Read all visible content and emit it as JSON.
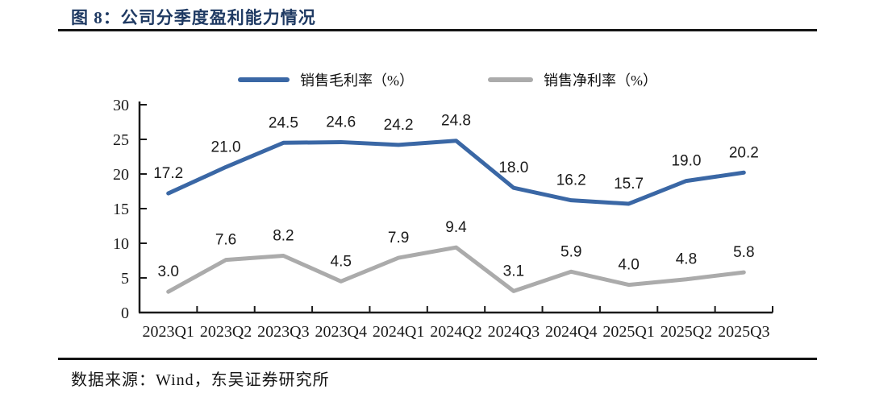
{
  "figure": {
    "title": "图 8：公司分季度盈利能力情况",
    "source": "数据来源：Wind，东吴证券研究所"
  },
  "colors": {
    "title_navy": "#1F3A63",
    "series_blue": "#3A67A5",
    "series_gray": "#ABABAB",
    "axis": "#1A1A1A",
    "label_text": "#1A1A1A",
    "rule": "#141414"
  },
  "chart_data": {
    "type": "line",
    "title": "公司分季度盈利能力情况",
    "categories": [
      "2023Q1",
      "2023Q2",
      "2023Q3",
      "2023Q4",
      "2024Q1",
      "2024Q2",
      "2024Q3",
      "2024Q4",
      "2025Q1",
      "2025Q2",
      "2025Q3"
    ],
    "series": [
      {
        "name": "销售毛利率（%）",
        "color_key": "series_blue",
        "values": [
          17.2,
          21.0,
          24.5,
          24.6,
          24.2,
          24.8,
          18.0,
          16.2,
          15.7,
          19.0,
          20.2
        ]
      },
      {
        "name": "销售净利率（%）",
        "color_key": "series_gray",
        "values": [
          3.0,
          7.6,
          8.2,
          4.5,
          7.9,
          9.4,
          3.1,
          5.9,
          4.0,
          4.8,
          5.8
        ]
      }
    ],
    "xlabel": "",
    "ylabel": "",
    "ylim": [
      0,
      30
    ],
    "yticks": [
      0,
      5,
      10,
      15,
      20,
      25,
      30
    ],
    "grid": false,
    "legend_position": "top",
    "data_labels": true,
    "label_decimals": 1
  }
}
